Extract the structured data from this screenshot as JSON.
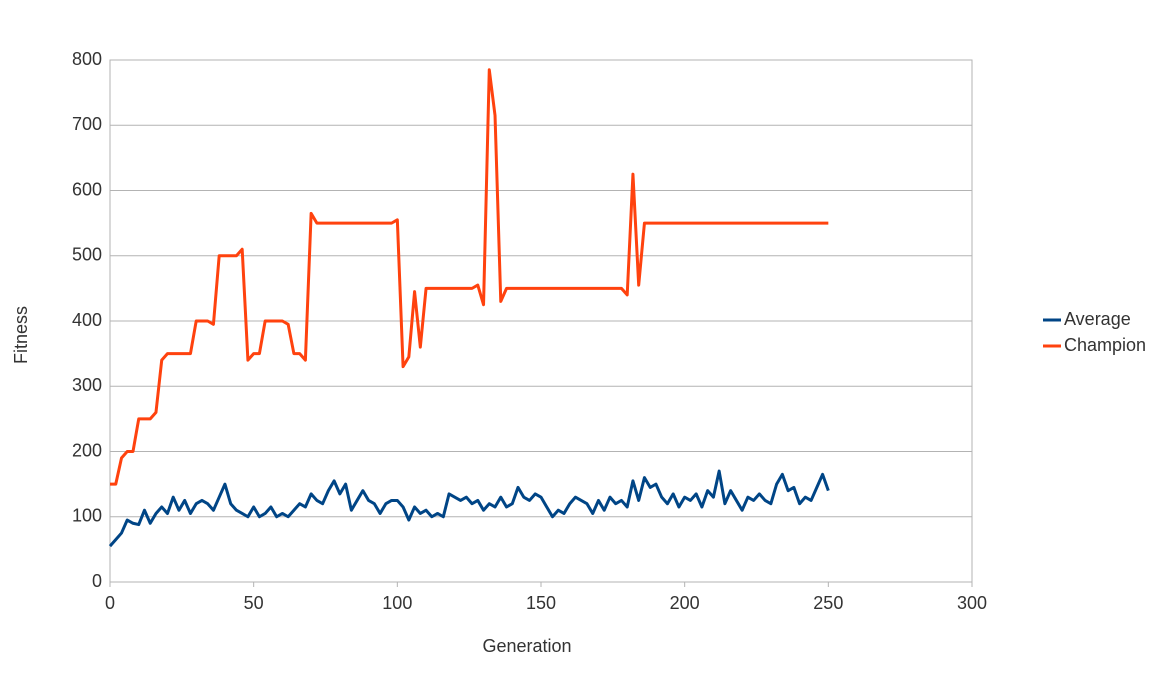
{
  "chart_data": {
    "type": "line",
    "x_label": "Generation",
    "y_label": "Fitness",
    "xlim": [
      0,
      300
    ],
    "xticks": [
      0,
      50,
      100,
      150,
      200,
      250,
      300
    ],
    "ylim": [
      0,
      800
    ],
    "yticks": [
      0,
      100,
      200,
      300,
      400,
      500,
      600,
      700,
      800
    ],
    "grid": true,
    "legend": "right",
    "x": [
      0,
      2,
      4,
      6,
      8,
      10,
      12,
      14,
      16,
      18,
      20,
      22,
      24,
      26,
      28,
      30,
      32,
      34,
      36,
      38,
      40,
      42,
      44,
      46,
      48,
      50,
      52,
      54,
      56,
      58,
      60,
      62,
      64,
      66,
      68,
      70,
      72,
      74,
      76,
      78,
      80,
      82,
      84,
      86,
      88,
      90,
      92,
      94,
      96,
      98,
      100,
      102,
      104,
      106,
      108,
      110,
      112,
      114,
      116,
      118,
      120,
      122,
      124,
      126,
      128,
      130,
      132,
      134,
      136,
      138,
      140,
      142,
      144,
      146,
      148,
      150,
      152,
      154,
      156,
      158,
      160,
      162,
      164,
      166,
      168,
      170,
      172,
      174,
      176,
      178,
      180,
      182,
      184,
      186,
      188,
      190,
      192,
      194,
      196,
      198,
      200,
      202,
      204,
      206,
      208,
      210,
      212,
      214,
      216,
      218,
      220,
      222,
      224,
      226,
      228,
      230,
      232,
      234,
      236,
      238,
      240,
      242,
      244,
      246,
      248,
      250
    ],
    "series": [
      {
        "name": "Average",
        "color": "#004586",
        "values": [
          55,
          65,
          75,
          95,
          90,
          88,
          110,
          90,
          105,
          115,
          105,
          130,
          110,
          125,
          105,
          120,
          125,
          120,
          110,
          130,
          150,
          120,
          110,
          105,
          100,
          115,
          100,
          105,
          115,
          100,
          105,
          100,
          110,
          120,
          115,
          135,
          125,
          120,
          140,
          155,
          135,
          150,
          110,
          125,
          140,
          125,
          120,
          105,
          120,
          125,
          125,
          115,
          95,
          115,
          105,
          110,
          100,
          105,
          100,
          135,
          130,
          125,
          130,
          120,
          125,
          110,
          120,
          115,
          130,
          115,
          120,
          145,
          130,
          125,
          135,
          130,
          115,
          100,
          110,
          105,
          120,
          130,
          125,
          120,
          105,
          125,
          110,
          130,
          120,
          125,
          115,
          155,
          125,
          160,
          145,
          150,
          130,
          120,
          135,
          115,
          130,
          125,
          135,
          115,
          140,
          130,
          170,
          120,
          140,
          125,
          110,
          130,
          125,
          135,
          125,
          120,
          150,
          165,
          140,
          145,
          120,
          130,
          125,
          145,
          165,
          140
        ]
      },
      {
        "name": "Champion",
        "color": "#ff420e",
        "values": [
          150,
          150,
          190,
          200,
          200,
          250,
          250,
          250,
          260,
          340,
          350,
          350,
          350,
          350,
          350,
          400,
          400,
          400,
          395,
          500,
          500,
          500,
          500,
          510,
          340,
          350,
          350,
          400,
          400,
          400,
          400,
          395,
          350,
          350,
          340,
          565,
          550,
          550,
          550,
          550,
          550,
          550,
          550,
          550,
          550,
          550,
          550,
          550,
          550,
          550,
          555,
          330,
          345,
          445,
          360,
          450,
          450,
          450,
          450,
          450,
          450,
          450,
          450,
          450,
          455,
          425,
          785,
          715,
          430,
          450,
          450,
          450,
          450,
          450,
          450,
          450,
          450,
          450,
          450,
          450,
          450,
          450,
          450,
          450,
          450,
          450,
          450,
          450,
          450,
          450,
          440,
          625,
          455,
          550,
          550,
          550,
          550,
          550,
          550,
          550,
          550,
          550,
          550,
          550,
          550,
          550,
          550,
          550,
          550,
          550,
          550,
          550,
          550,
          550,
          550,
          550,
          550,
          550,
          550,
          550,
          550,
          550,
          550,
          550,
          550,
          550
        ]
      }
    ]
  }
}
